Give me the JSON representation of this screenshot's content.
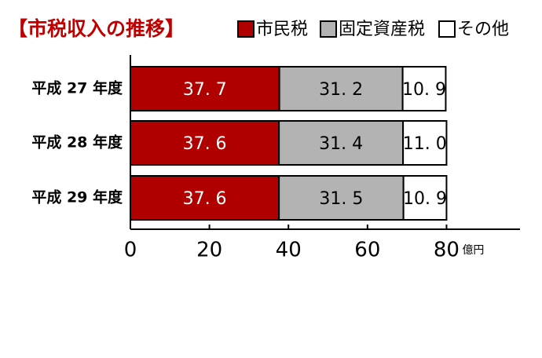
{
  "chart_data": {
    "type": "bar",
    "orientation": "horizontal",
    "stacked": true,
    "title": "【市税収入の推移】",
    "categories": [
      "平成 27 年度",
      "平成 28 年度",
      "平成 29 年度"
    ],
    "series": [
      {
        "name": "市民税",
        "color": "#b00000",
        "label_color": "#ffffff",
        "values": [
          37.7,
          37.6,
          37.6
        ],
        "value_labels": [
          "37. 7",
          "37. 6",
          "37. 6"
        ]
      },
      {
        "name": "固定資産税",
        "color": "#b3b3b3",
        "label_color": "#000000",
        "values": [
          31.2,
          31.4,
          31.5
        ],
        "value_labels": [
          "31. 2",
          "31. 4",
          "31. 5"
        ]
      },
      {
        "name": "その他",
        "color": "#ffffff",
        "label_color": "#000000",
        "values": [
          10.9,
          11.0,
          10.9
        ],
        "value_labels": [
          "10. 9",
          "11. 0",
          "10. 9"
        ]
      }
    ],
    "xlim": [
      0,
      98
    ],
    "xticks": [
      0,
      20,
      40,
      60,
      80
    ],
    "x_unit": "億円"
  }
}
